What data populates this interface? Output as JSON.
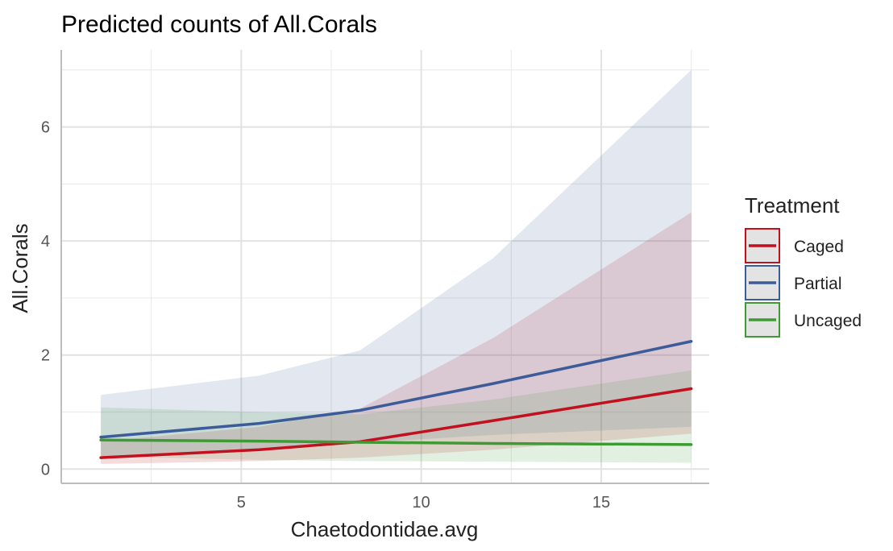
{
  "chart_data": {
    "type": "line",
    "title": "Predicted counts of All.Corals",
    "xlabel": "Chaetodontidae.avg",
    "ylabel": "All.Corals",
    "xlim": [
      0.0,
      18.0
    ],
    "ylim": [
      -0.25,
      7.35
    ],
    "x_ticks": [
      5,
      10,
      15
    ],
    "y_ticks": [
      0,
      2,
      4,
      6
    ],
    "grid": true,
    "legend": {
      "title": "Treatment",
      "placement": "right"
    },
    "x": [
      1.1,
      5.5,
      8.3,
      12.0,
      17.5
    ],
    "series": [
      {
        "name": "Caged",
        "color": "#c2101e",
        "values": [
          0.2,
          0.34,
          0.48,
          0.85,
          1.41
        ],
        "lower": [
          0.09,
          0.14,
          0.2,
          0.34,
          0.62
        ],
        "upper": [
          0.48,
          0.74,
          1.06,
          2.3,
          4.5
        ]
      },
      {
        "name": "Partial",
        "color": "#3c5c99",
        "values": [
          0.56,
          0.8,
          1.03,
          1.5,
          2.24
        ],
        "lower": [
          0.22,
          0.36,
          0.46,
          0.6,
          0.74
        ],
        "upper": [
          1.3,
          1.64,
          2.08,
          3.7,
          7.0
        ]
      },
      {
        "name": "Uncaged",
        "color": "#3f9a36",
        "values": [
          0.51,
          0.49,
          0.47,
          0.45,
          0.43
        ],
        "lower": [
          0.22,
          0.16,
          0.14,
          0.13,
          0.11
        ],
        "upper": [
          1.08,
          1.0,
          0.96,
          1.22,
          1.73
        ]
      }
    ]
  }
}
